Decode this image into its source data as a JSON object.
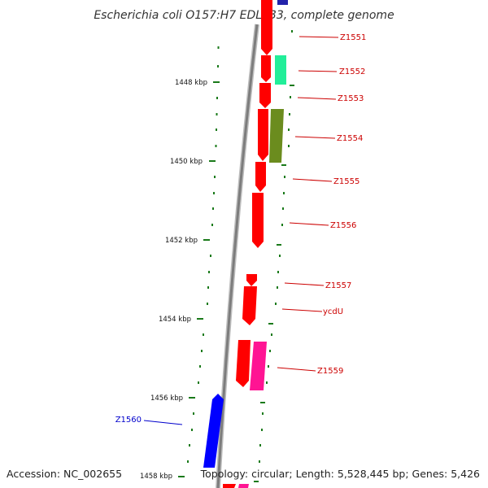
{
  "title": "Escherichia coli O157:H7 EDL933, complete genome",
  "footer": {
    "accession": "Accession: NC_002655",
    "summary": "Topology: circular; Length: 5,528,445 bp; Genes: 5,426"
  },
  "colors": {
    "backbone": "#8a8a8a",
    "tick": "#1a7a1a",
    "forward_gene": "#ff0000",
    "reverse_gene": "#0000ff",
    "label_forward": "#cc0000",
    "label_reverse": "#0000cc"
  },
  "ticks": [
    {
      "label": "1448 kbp"
    },
    {
      "label": "1450 kbp"
    },
    {
      "label": "1452 kbp"
    },
    {
      "label": "1454 kbp"
    },
    {
      "label": "1456 kbp"
    },
    {
      "label": "1458 kbp"
    }
  ],
  "gene_labels": [
    {
      "text": "Z1551",
      "strand": "forward"
    },
    {
      "text": "Z1552",
      "strand": "forward"
    },
    {
      "text": "Z1553",
      "strand": "forward"
    },
    {
      "text": "Z1554",
      "strand": "forward"
    },
    {
      "text": "Z1555",
      "strand": "forward"
    },
    {
      "text": "Z1556",
      "strand": "forward"
    },
    {
      "text": "Z1557",
      "strand": "forward"
    },
    {
      "text": "ycdU",
      "strand": "forward"
    },
    {
      "text": "Z1559",
      "strand": "forward"
    },
    {
      "text": "Z1560",
      "strand": "reverse"
    }
  ]
}
